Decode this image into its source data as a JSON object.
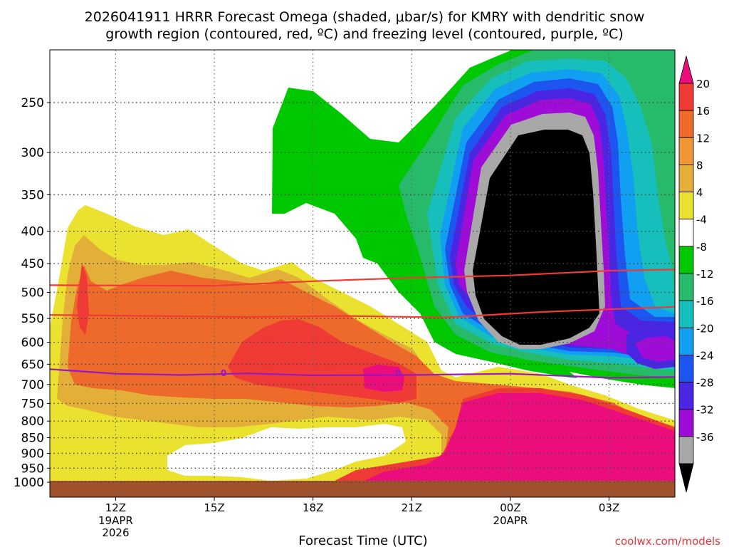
{
  "chart_data": {
    "type": "heatmap",
    "title_line1": "2026041911 HRRR Forecast Omega (shaded, μbar/s) for KMRY with dendritic snow",
    "title_line2": "growth region (contoured, red, ºC) and freezing level (contoured, purple, ºC)",
    "xlabel": "Forecast Time (UTC)",
    "ylabel": "",
    "credit": "coolwx.com/models",
    "x_ticks": [
      {
        "label": "12Z",
        "sub1": "19APR",
        "sub2": "2026",
        "hour": 12
      },
      {
        "label": "15Z",
        "sub1": "",
        "sub2": "",
        "hour": 15
      },
      {
        "label": "18Z",
        "sub1": "",
        "sub2": "",
        "hour": 18
      },
      {
        "label": "21Z",
        "sub1": "",
        "sub2": "",
        "hour": 21
      },
      {
        "label": "00Z",
        "sub1": "20APR",
        "sub2": "",
        "hour": 24
      },
      {
        "label": "03Z",
        "sub1": "",
        "sub2": "",
        "hour": 27
      }
    ],
    "xlim_hours": [
      10,
      29
    ],
    "y_ticks": [
      {
        "label": "250",
        "p": 250
      },
      {
        "label": "300",
        "p": 300
      },
      {
        "label": "350",
        "p": 350
      },
      {
        "label": "400",
        "p": 400
      },
      {
        "label": "450",
        "p": 450
      },
      {
        "label": "500",
        "p": 500
      },
      {
        "label": "550",
        "p": 550
      },
      {
        "label": "600",
        "p": 600
      },
      {
        "label": "650",
        "p": 650
      },
      {
        "label": "700",
        "p": 700
      },
      {
        "label": "750",
        "p": 750
      },
      {
        "label": "800",
        "p": 800
      },
      {
        "label": "850",
        "p": 850
      },
      {
        "label": "900",
        "p": 900
      },
      {
        "label": "950",
        "p": 950
      },
      {
        "label": "1000",
        "p": 1000
      }
    ],
    "colorbar_levels": [
      "20",
      "16",
      "12",
      "8",
      "4",
      "-4",
      "-8",
      "-12",
      "-16",
      "-20",
      "-24",
      "-28",
      "-32",
      "-36"
    ],
    "colorbar_colors": [
      "#ec0d7c",
      "#f03a35",
      "#ed6a2a",
      "#f09634",
      "#e4af38",
      "#ebe12f",
      "#ffffff",
      "#00c800",
      "#27ba6b",
      "#17bfbc",
      "#11a0f1",
      "#1c55ef",
      "#4a26e4",
      "#a00cd7",
      "#a8a8a8",
      "#000000"
    ],
    "contour_labels": [
      "0",
      "0"
    ],
    "series": [
      {
        "name": "dendritic growth -12C",
        "color": "#ef3a35",
        "points": [
          [
            10.0,
            487
          ],
          [
            15.0,
            488
          ],
          [
            18.0,
            480
          ],
          [
            21.0,
            474
          ],
          [
            24.0,
            470
          ],
          [
            27.0,
            462
          ],
          [
            29.0,
            460
          ]
        ]
      },
      {
        "name": "dendritic growth -18C",
        "color": "#ef3a35",
        "points": [
          [
            10.0,
            543
          ],
          [
            13.0,
            545
          ],
          [
            16.0,
            547
          ],
          [
            19.0,
            545
          ],
          [
            22.0,
            548
          ],
          [
            25.0,
            537
          ],
          [
            29.0,
            527
          ]
        ]
      },
      {
        "name": "freezing level 0C",
        "color": "#9b17c0",
        "points": [
          [
            10.0,
            662
          ],
          [
            12.0,
            673
          ],
          [
            14.0,
            676
          ],
          [
            16.0,
            672
          ],
          [
            18.0,
            677
          ],
          [
            21.0,
            676
          ],
          [
            24.0,
            673
          ],
          [
            27.0,
            683
          ],
          [
            29.0,
            681
          ]
        ]
      }
    ]
  }
}
